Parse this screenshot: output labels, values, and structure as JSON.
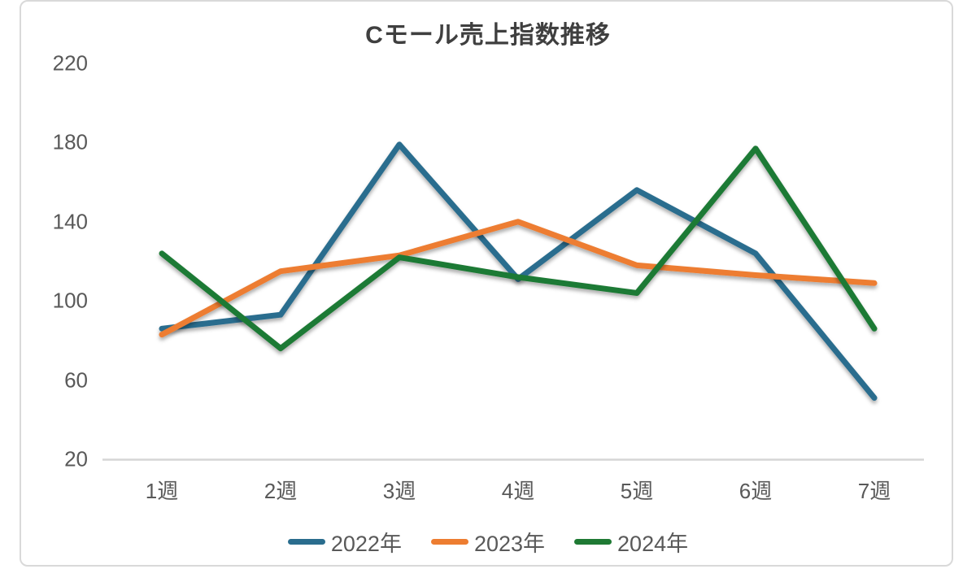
{
  "chart_data": {
    "type": "line",
    "title": "Cモール売上指数推移",
    "categories": [
      "1週",
      "2週",
      "3週",
      "4週",
      "5週",
      "6週",
      "7週"
    ],
    "series": [
      {
        "name": "2022年",
        "color": "#2a6d8e",
        "values": [
          86,
          93,
          179,
          111,
          156,
          124,
          51
        ]
      },
      {
        "name": "2023年",
        "color": "#ed7d31",
        "values": [
          83,
          115,
          123,
          140,
          118,
          113,
          109
        ]
      },
      {
        "name": "2024年",
        "color": "#1f7a34",
        "values": [
          124,
          76,
          122,
          112,
          104,
          177,
          86
        ]
      }
    ],
    "y_axis": {
      "min": 20,
      "max": 220,
      "step": 40,
      "ticks": [
        20,
        60,
        100,
        140,
        180,
        220
      ]
    },
    "x_axis_label": "",
    "y_axis_label": "",
    "grid": false,
    "legend_position": "bottom",
    "axis_line_color": "#d6d6d6",
    "text_color": "#595959",
    "title_color": "#3f3f3f",
    "frame_border_color": "#d9d9d9"
  }
}
